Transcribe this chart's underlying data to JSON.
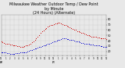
{
  "title": "Milwaukee Weather Outdoor Temp / Dew Point\nby Minute\n(24 Hours) (Alternate)",
  "title_fontsize": 3.5,
  "bg_color": "#e8e8e8",
  "plot_bg_color": "#e8e8e8",
  "grid_color": "#aaaaaa",
  "red_color": "#cc0000",
  "blue_color": "#0000cc",
  "yticks": [
    20,
    30,
    40,
    50,
    60,
    70,
    80
  ],
  "ylim": [
    12,
    88
  ],
  "xlim": [
    0,
    1440
  ],
  "xtick_labels": [
    "12\nAM",
    "1",
    "2",
    "3",
    "4",
    "5",
    "6",
    "7",
    "8",
    "9",
    "10",
    "11",
    "12\nPM",
    "1",
    "2",
    "3",
    "4",
    "5",
    "6",
    "7",
    "8",
    "9",
    "10",
    "11",
    "12"
  ],
  "xtick_positions": [
    0,
    60,
    120,
    180,
    240,
    300,
    360,
    420,
    480,
    540,
    600,
    660,
    720,
    780,
    840,
    900,
    960,
    1020,
    1080,
    1140,
    1200,
    1260,
    1320,
    1380,
    1440
  ],
  "red_x": [
    0,
    20,
    40,
    60,
    80,
    100,
    120,
    140,
    160,
    180,
    200,
    220,
    240,
    260,
    280,
    300,
    320,
    340,
    360,
    380,
    400,
    420,
    440,
    460,
    480,
    500,
    520,
    540,
    560,
    580,
    600,
    620,
    640,
    660,
    680,
    700,
    720,
    740,
    760,
    780,
    800,
    820,
    840,
    860,
    880,
    900,
    920,
    940,
    960,
    980,
    1000,
    1020,
    1040,
    1060,
    1080,
    1100,
    1120,
    1140,
    1160,
    1180,
    1200,
    1220,
    1240,
    1260,
    1280,
    1300,
    1320,
    1340,
    1360,
    1380,
    1400,
    1420,
    1440
  ],
  "red_y": [
    38,
    37,
    36,
    35,
    34,
    34,
    33,
    33,
    32,
    32,
    31,
    30,
    30,
    29,
    29,
    29,
    30,
    31,
    32,
    33,
    35,
    37,
    39,
    42,
    45,
    48,
    51,
    54,
    57,
    59,
    62,
    64,
    66,
    68,
    69,
    70,
    71,
    72,
    72,
    73,
    73,
    72,
    71,
    70,
    69,
    68,
    66,
    65,
    63,
    62,
    61,
    60,
    58,
    57,
    56,
    55,
    54,
    53,
    52,
    51,
    50,
    49,
    48,
    48,
    47,
    47,
    46,
    46,
    45,
    45,
    44,
    44,
    43
  ],
  "blue_x": [
    0,
    20,
    40,
    60,
    80,
    100,
    120,
    140,
    160,
    180,
    200,
    220,
    240,
    260,
    280,
    300,
    320,
    340,
    360,
    380,
    400,
    420,
    440,
    460,
    480,
    500,
    520,
    540,
    560,
    580,
    600,
    620,
    640,
    660,
    680,
    700,
    720,
    740,
    760,
    780,
    800,
    820,
    840,
    860,
    880,
    900,
    920,
    940,
    960,
    980,
    1000,
    1020,
    1040,
    1060,
    1080,
    1100,
    1120,
    1140,
    1160,
    1180,
    1200,
    1220,
    1240,
    1260,
    1280,
    1300,
    1320,
    1340,
    1360,
    1380,
    1400,
    1420,
    1440
  ],
  "blue_y": [
    19,
    19,
    18,
    18,
    17,
    17,
    16,
    16,
    16,
    16,
    17,
    17,
    17,
    18,
    18,
    18,
    19,
    19,
    20,
    21,
    22,
    23,
    24,
    25,
    26,
    27,
    28,
    29,
    30,
    31,
    32,
    33,
    34,
    35,
    36,
    37,
    38,
    39,
    40,
    41,
    42,
    43,
    44,
    44,
    44,
    43,
    43,
    42,
    42,
    41,
    40,
    39,
    39,
    38,
    37,
    36,
    36,
    35,
    35,
    34,
    34,
    33,
    33,
    33,
    32,
    32,
    31,
    31,
    30,
    30,
    29,
    29,
    28
  ]
}
